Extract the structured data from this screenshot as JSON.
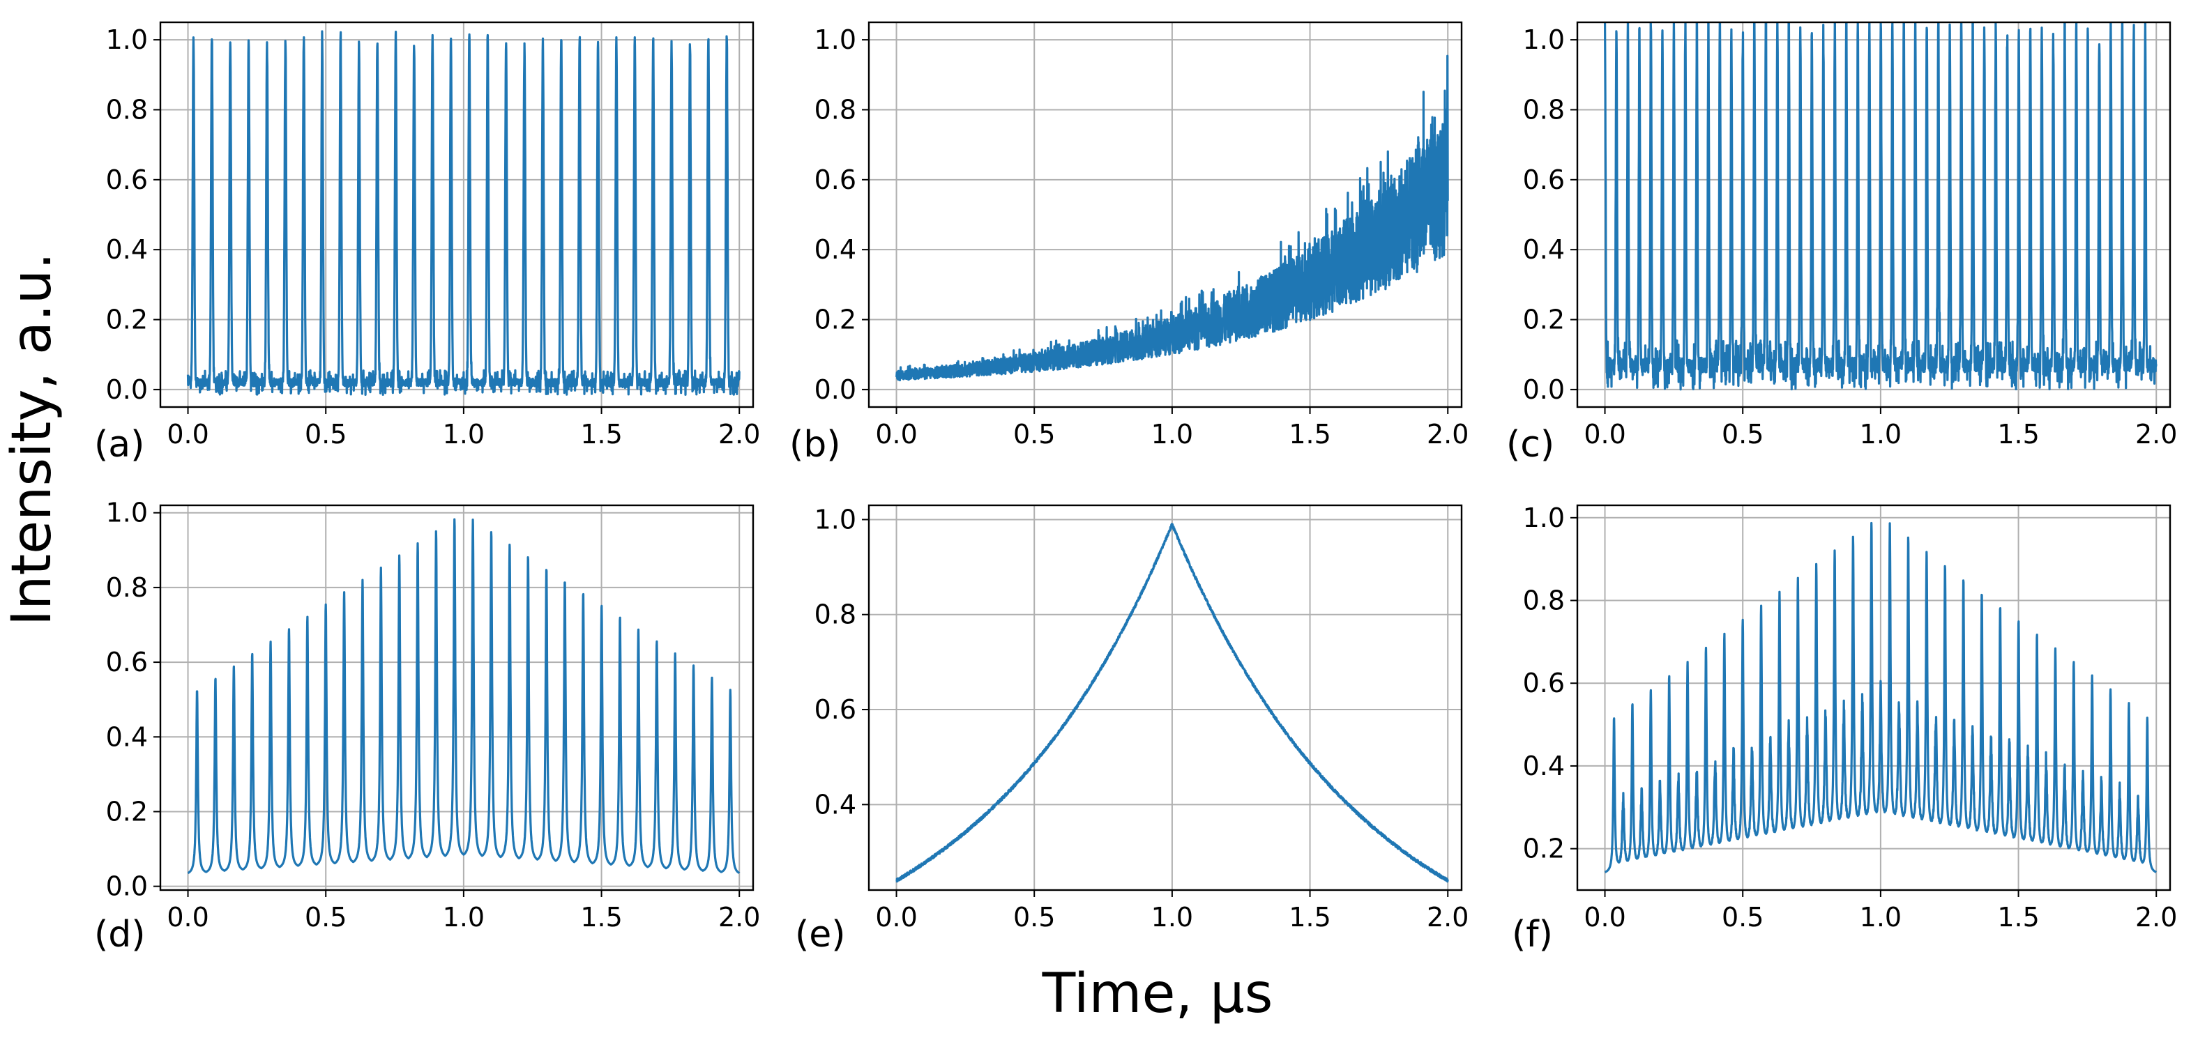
{
  "figure": {
    "ylabel": "Intensity, a.u.",
    "xlabel": "Time, μs"
  },
  "chart_data": [
    {
      "id": "a",
      "label": "(a)",
      "type": "line",
      "description_series": "pulse train, period 0.0667, constant peak ~1.0, baseline ~0.02",
      "xlim": [
        -0.1,
        2.05
      ],
      "ylim": [
        -0.05,
        1.05
      ],
      "xticks": [
        0.0,
        0.5,
        1.0,
        1.5,
        2.0
      ],
      "yticks": [
        0.0,
        0.2,
        0.4,
        0.6,
        0.8,
        1.0
      ],
      "xtick_labels": [
        "0.0",
        "0.5",
        "1.0",
        "1.5",
        "2.0"
      ],
      "ytick_labels": [
        "0.0",
        "0.2",
        "0.4",
        "0.6",
        "0.8",
        "1.0"
      ],
      "model": {
        "kind": "pulses",
        "period": 0.0667,
        "t0": 0.02,
        "peak": 1.0,
        "peakVar": 0.03,
        "base": 0.02,
        "noise": 0.035,
        "width": 0.004
      },
      "series_color": "#1f77b4"
    },
    {
      "id": "b",
      "label": "(b)",
      "type": "line",
      "xlim": [
        -0.1,
        2.05
      ],
      "ylim": [
        -0.05,
        1.05
      ],
      "xticks": [
        0.0,
        0.5,
        1.0,
        1.5,
        2.0
      ],
      "yticks": [
        0.0,
        0.2,
        0.4,
        0.6,
        0.8,
        1.0
      ],
      "xtick_labels": [
        "0.0",
        "0.5",
        "1.0",
        "1.5",
        "2.0"
      ],
      "ytick_labels": [
        "0.0",
        "0.2",
        "0.4",
        "0.6",
        "0.8",
        "1.0"
      ],
      "model": {
        "kind": "exp-noise",
        "start": 0.04,
        "end": 0.6,
        "spreadFrac": 0.35,
        "spikeFrac": 0.6
      },
      "series_color": "#1f77b4"
    },
    {
      "id": "c",
      "label": "(c)",
      "type": "line",
      "xlim": [
        -0.1,
        2.05
      ],
      "ylim": [
        -0.05,
        1.05
      ],
      "xticks": [
        0.0,
        0.5,
        1.0,
        1.5,
        2.0
      ],
      "yticks": [
        0.0,
        0.2,
        0.4,
        0.6,
        0.8,
        1.0
      ],
      "xtick_labels": [
        "0.0",
        "0.5",
        "1.0",
        "1.5",
        "2.0"
      ],
      "ytick_labels": [
        "0.0",
        "0.2",
        "0.4",
        "0.6",
        "0.8",
        "1.0"
      ],
      "model": {
        "kind": "pulses",
        "period": 0.0417,
        "t0": 0.0,
        "peak": 1.0,
        "peakVar": 0.04,
        "base": 0.07,
        "noise": 0.07,
        "width": 0.003
      },
      "series_color": "#1f77b4"
    },
    {
      "id": "d",
      "label": "(d)",
      "type": "line",
      "xlim": [
        -0.1,
        2.05
      ],
      "ylim": [
        -0.01,
        1.02
      ],
      "xticks": [
        0.0,
        0.5,
        1.0,
        1.5,
        2.0
      ],
      "yticks": [
        0.0,
        0.2,
        0.4,
        0.6,
        0.8,
        1.0
      ],
      "xtick_labels": [
        "0.0",
        "0.5",
        "1.0",
        "1.5",
        "2.0"
      ],
      "ytick_labels": [
        "0.0",
        "0.2",
        "0.4",
        "0.6",
        "0.8",
        "1.0"
      ],
      "model": {
        "kind": "tent-pulses",
        "period": 0.0667,
        "t0": 0.033,
        "peakMin": 0.51,
        "peakMax": 1.0,
        "baseMin": 0.03,
        "baseMax": 0.075,
        "width": 0.007
      },
      "series_color": "#1f77b4"
    },
    {
      "id": "e",
      "label": "(e)",
      "type": "line",
      "xlim": [
        -0.1,
        2.05
      ],
      "ylim": [
        0.22,
        1.03
      ],
      "xticks": [
        0.0,
        0.5,
        1.0,
        1.5,
        2.0
      ],
      "yticks": [
        0.4,
        0.6,
        0.8,
        1.0
      ],
      "xtick_labels": [
        "0.0",
        "0.5",
        "1.0",
        "1.5",
        "2.0"
      ],
      "ytick_labels": [
        "0.4",
        "0.6",
        "0.8",
        "1.0"
      ],
      "model": {
        "kind": "cusp",
        "min": 0.24,
        "max": 0.99,
        "rate": 1.42
      },
      "series_color": "#1f77b4"
    },
    {
      "id": "f",
      "label": "(f)",
      "type": "line",
      "xlim": [
        -0.1,
        2.05
      ],
      "ylim": [
        0.1,
        1.03
      ],
      "xticks": [
        0.0,
        0.5,
        1.0,
        1.5,
        2.0
      ],
      "yticks": [
        0.2,
        0.4,
        0.6,
        0.8,
        1.0
      ],
      "xtick_labels": [
        "0.0",
        "0.5",
        "1.0",
        "1.5",
        "2.0"
      ],
      "ytick_labels": [
        "0.2",
        "0.4",
        "0.6",
        "0.8",
        "1.0"
      ],
      "model": {
        "kind": "dual-pulses",
        "period": 0.0667,
        "t0": 0.033,
        "bigMin": 0.5,
        "bigMax": 1.0,
        "smallMin": 0.32,
        "smallMax": 0.6,
        "baseMin": 0.14,
        "baseMax": 0.25,
        "width": 0.006
      },
      "series_color": "#1f77b4"
    }
  ]
}
